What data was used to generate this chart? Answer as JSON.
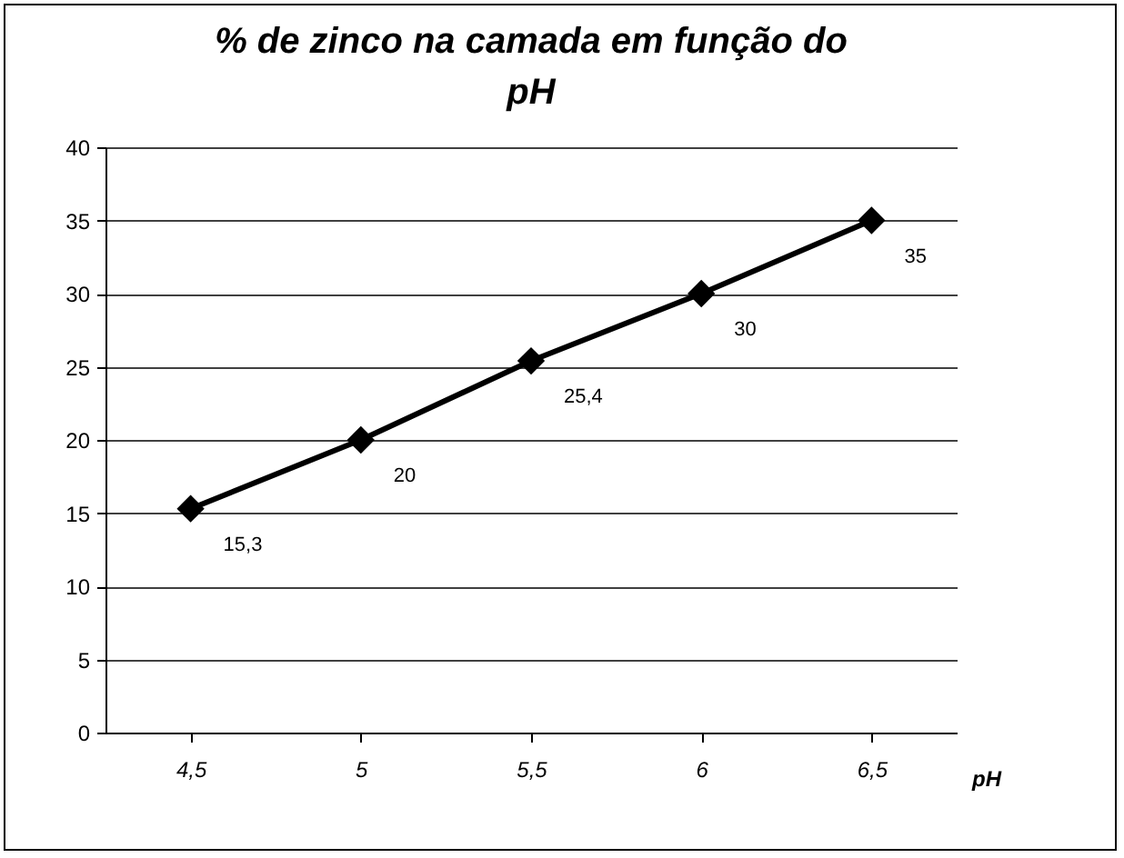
{
  "chart_data": {
    "type": "line",
    "title": "% de zinco na camada em função do pH",
    "xlabel": "pH",
    "categories": [
      "4,5",
      "5",
      "5,5",
      "6",
      "6,5"
    ],
    "series": [
      {
        "color": "#000000",
        "values": [
          15.3,
          20,
          25.4,
          30,
          35
        ],
        "value_labels": [
          "15,3",
          "20",
          "25,4",
          "30",
          "35"
        ]
      }
    ],
    "ylim": [
      0,
      40
    ],
    "yticks": [
      0,
      5,
      10,
      15,
      20,
      25,
      30,
      35,
      40
    ],
    "grid": "y",
    "marker": "diamond",
    "line_style": "solid"
  }
}
